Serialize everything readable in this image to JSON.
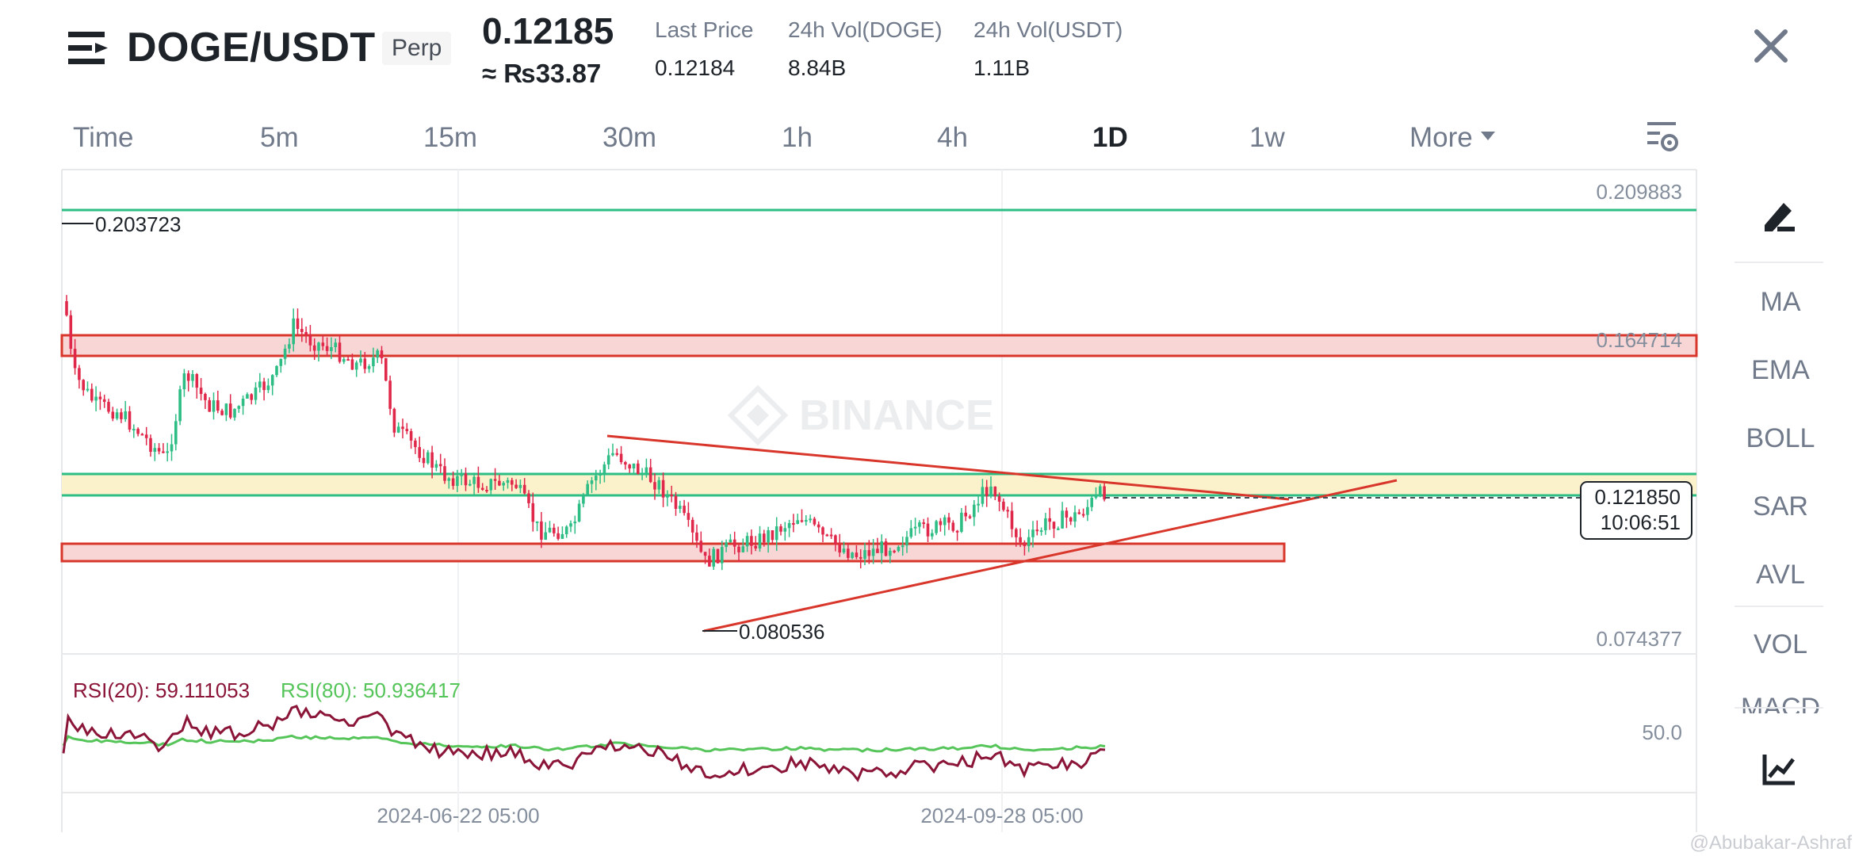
{
  "header": {
    "pair": "DOGE/USDT",
    "badge": "Perp",
    "price": "0.12185",
    "local_price": "≈ ₨33.87",
    "stats": [
      {
        "label": "Last Price",
        "value": "0.12184"
      },
      {
        "label": "24h Vol(DOGE)",
        "value": "8.84B"
      },
      {
        "label": "24h Vol(USDT)",
        "value": "1.11B"
      }
    ]
  },
  "tabs": [
    "Time",
    "5m",
    "15m",
    "30m",
    "1h",
    "4h",
    "1D",
    "1w",
    "More"
  ],
  "active_tab": "1D",
  "side_toolbar": {
    "items": [
      "MA",
      "EMA",
      "BOLL",
      "SAR",
      "AVL",
      "VOL",
      "MACD"
    ]
  },
  "chart": {
    "watermark": "BINANCE",
    "credit": "@Abubakar-Ashraf",
    "axis_labels": {
      "top": "0.209883",
      "mid": "0.164714",
      "bottom": "0.074377",
      "rsi_mid": "50.0"
    },
    "annotations": {
      "high": "0.203723",
      "low": "0.080536"
    },
    "current_price_label": {
      "price": "0.121850",
      "countdown": "10:06:51"
    },
    "rsi_labels": {
      "rsi20": "RSI(20): 59.111053",
      "rsi80": "RSI(80): 50.936417"
    },
    "date_labels": [
      "2024-06-22 05:00",
      "2024-09-28 05:00"
    ],
    "colors": {
      "up": "#2ebd85",
      "down": "#e0294a",
      "resistance_zone": "#f9d6d6",
      "support_zone": "#fbf2cc",
      "trendline": "#d9362b",
      "green_level": "#2ebd85",
      "rsi20": "#8a1538",
      "rsi80": "#55c55a"
    }
  }
}
